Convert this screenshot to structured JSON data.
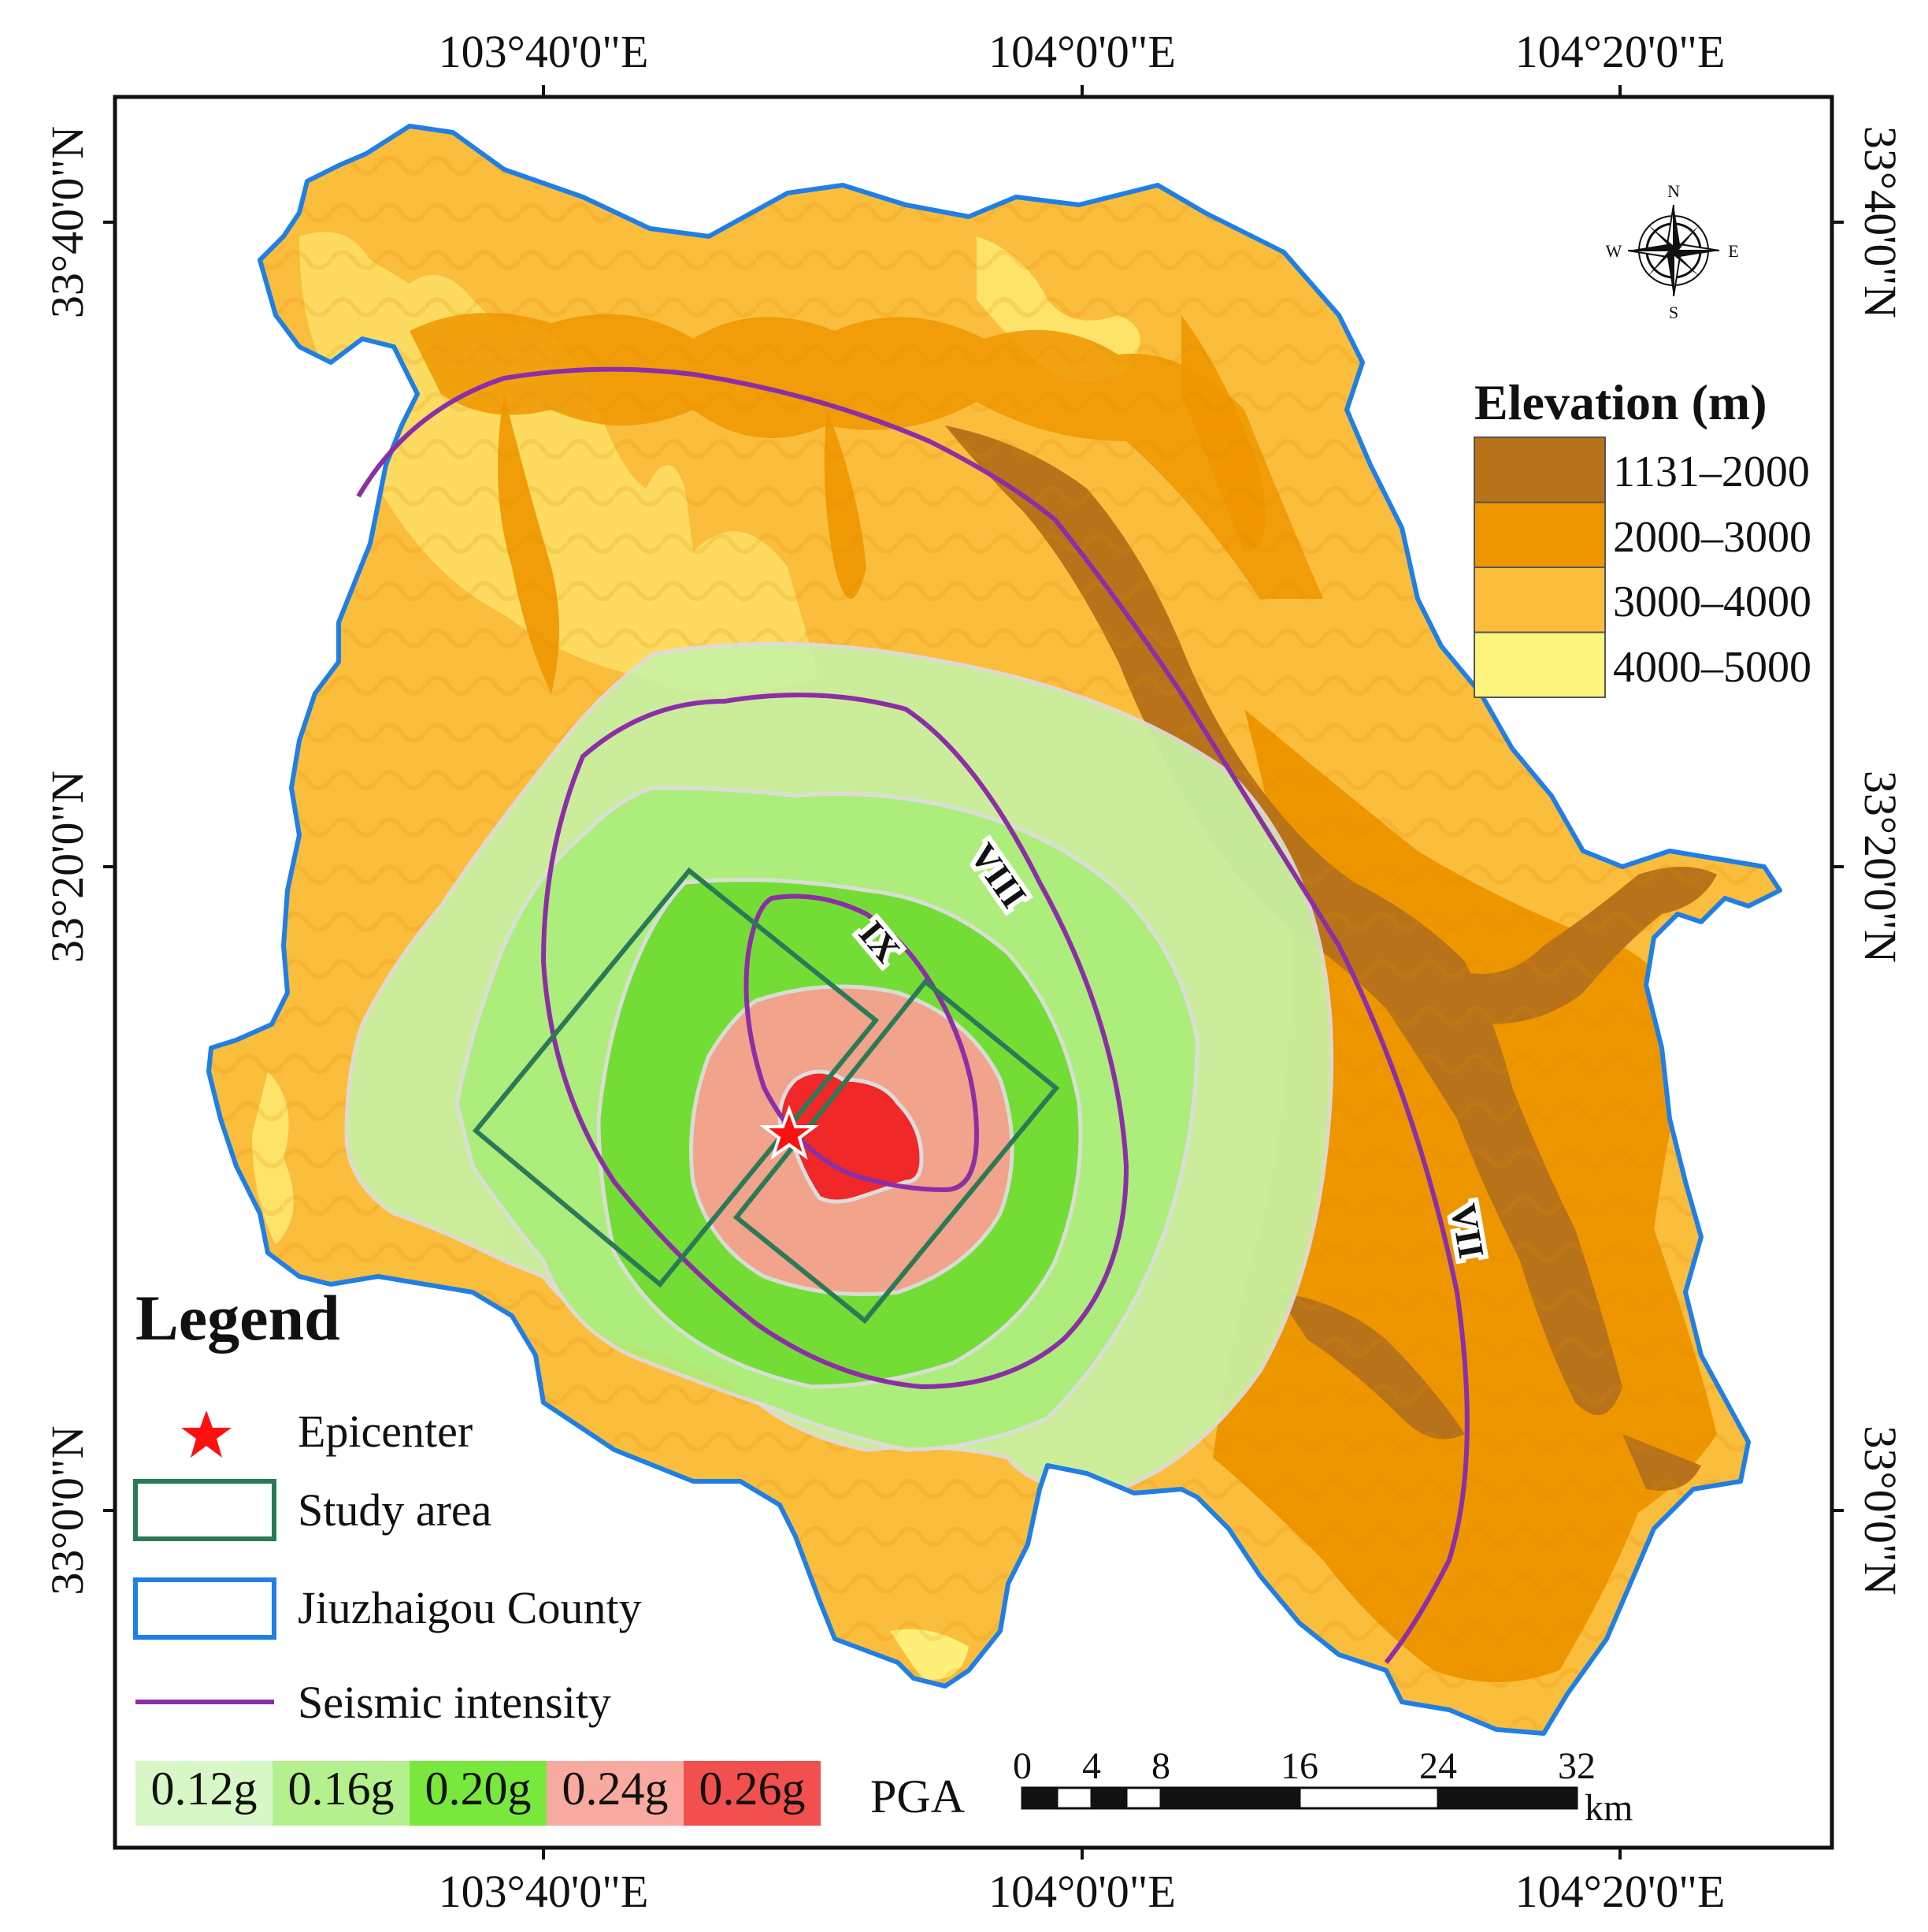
{
  "graticule": {
    "top": [
      "103°40'0\"E",
      "104°0'0\"E",
      "104°20'0\"E"
    ],
    "bottom": [
      "103°40'0\"E",
      "104°0'0\"E",
      "104°20'0\"E"
    ],
    "left": [
      "33°40'0\"N",
      "33°20'0\"N",
      "33°0'0\"N"
    ],
    "right": [
      "33°40'0\"N",
      "33°20'0\"N",
      "33°0'0\"N"
    ]
  },
  "compass": {
    "n": "N",
    "s": "S",
    "e": "E",
    "w": "W"
  },
  "elevation_legend": {
    "title": "Elevation (m)",
    "classes": [
      {
        "label": "1131–2000",
        "color": "#b8731a"
      },
      {
        "label": "2000–3000",
        "color": "#ee9600"
      },
      {
        "label": "3000–4000",
        "color": "#fbbd3c"
      },
      {
        "label": "4000–5000",
        "color": "#fdf47e"
      }
    ]
  },
  "legend": {
    "title": "Legend",
    "items": [
      {
        "label": "Epicenter",
        "symbol": "red-star",
        "color": "#ff1010"
      },
      {
        "label": "Study area",
        "symbol": "green-rectangle",
        "color": "#2b7a57"
      },
      {
        "label": "Jiuzhaigou County",
        "symbol": "blue-rectangle",
        "color": "#1f7fe6"
      },
      {
        "label": "Seismic intensity",
        "symbol": "purple-line",
        "color": "#8c2fa6"
      }
    ]
  },
  "pga_legend": {
    "label": "PGA",
    "classes": [
      {
        "label": "0.12g",
        "color": "#d7f7c6"
      },
      {
        "label": "0.16g",
        "color": "#b5f08e"
      },
      {
        "label": "0.20g",
        "color": "#79e83c"
      },
      {
        "label": "0.24g",
        "color": "#f9aaa0"
      },
      {
        "label": "0.26g",
        "color": "#f24f4f"
      }
    ]
  },
  "scale_bar": {
    "ticks": [
      "0",
      "4",
      "8",
      "16",
      "24",
      "32"
    ],
    "tick_values_km": [
      0,
      4,
      8,
      16,
      24,
      32
    ],
    "unit": "km"
  },
  "intensity_labels": [
    "IX",
    "VIII",
    "VII"
  ]
}
